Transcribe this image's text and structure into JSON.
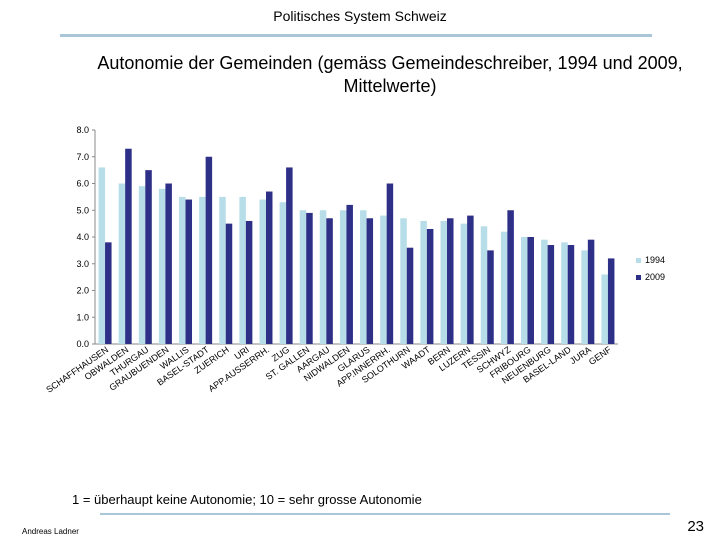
{
  "header": {
    "text": "Politisches System Schweiz"
  },
  "footer": {
    "note": "1 = überhaupt keine Autonomie; 10 = sehr grosse Autonomie",
    "author": "Andreas Ladner",
    "page": "23"
  },
  "colors": {
    "series1994": "#b7dde8",
    "series2009": "#2e2f86",
    "accent": "#aac6d9"
  },
  "chart_data": {
    "type": "bar",
    "title": "Autonomie der Gemeinden  (gemäss Gemeindeschreiber, 1994 und 2009, Mittelwerte)",
    "xlabel": "",
    "ylabel": "",
    "ylim": [
      0,
      8
    ],
    "yticks": [
      "0.0",
      "1.0",
      "2.0",
      "3.0",
      "4.0",
      "5.0",
      "6.0",
      "7.0",
      "8.0"
    ],
    "grid": false,
    "legend": "right",
    "categories": [
      "SCHAFFHAUSEN",
      "OBWALDEN",
      "THURGAU",
      "GRAUBUENDEN",
      "WALLIS",
      "BASEL-STADT",
      "ZUERICH",
      "URI",
      "APP.AUSSERRH.",
      "ZUG",
      "ST. GALLEN",
      "AARGAU",
      "NIDWALDEN",
      "GLARUS",
      "APP.INNERRH.",
      "SOLOTHURN",
      "WAADT",
      "BERN",
      "LUZERN",
      "TESSIN",
      "SCHWYZ",
      "FRIBOURG",
      "NEUENBURG",
      "BASEL-LAND",
      "JURA",
      "GENF"
    ],
    "series": [
      {
        "name": "1994",
        "values": [
          6.6,
          6.0,
          5.9,
          5.8,
          5.5,
          5.5,
          5.5,
          5.5,
          5.4,
          5.3,
          5.0,
          5.0,
          5.0,
          5.0,
          4.8,
          4.7,
          4.6,
          4.6,
          4.5,
          4.4,
          4.2,
          4.0,
          3.9,
          3.8,
          3.5,
          2.6
        ]
      },
      {
        "name": "2009",
        "values": [
          3.8,
          7.3,
          6.5,
          6.0,
          5.4,
          7.0,
          4.5,
          4.6,
          5.7,
          6.6,
          4.9,
          4.7,
          5.2,
          4.7,
          6.0,
          3.6,
          4.3,
          4.7,
          4.8,
          3.5,
          5.0,
          4.0,
          3.7,
          3.7,
          3.9,
          3.2
        ]
      }
    ]
  }
}
